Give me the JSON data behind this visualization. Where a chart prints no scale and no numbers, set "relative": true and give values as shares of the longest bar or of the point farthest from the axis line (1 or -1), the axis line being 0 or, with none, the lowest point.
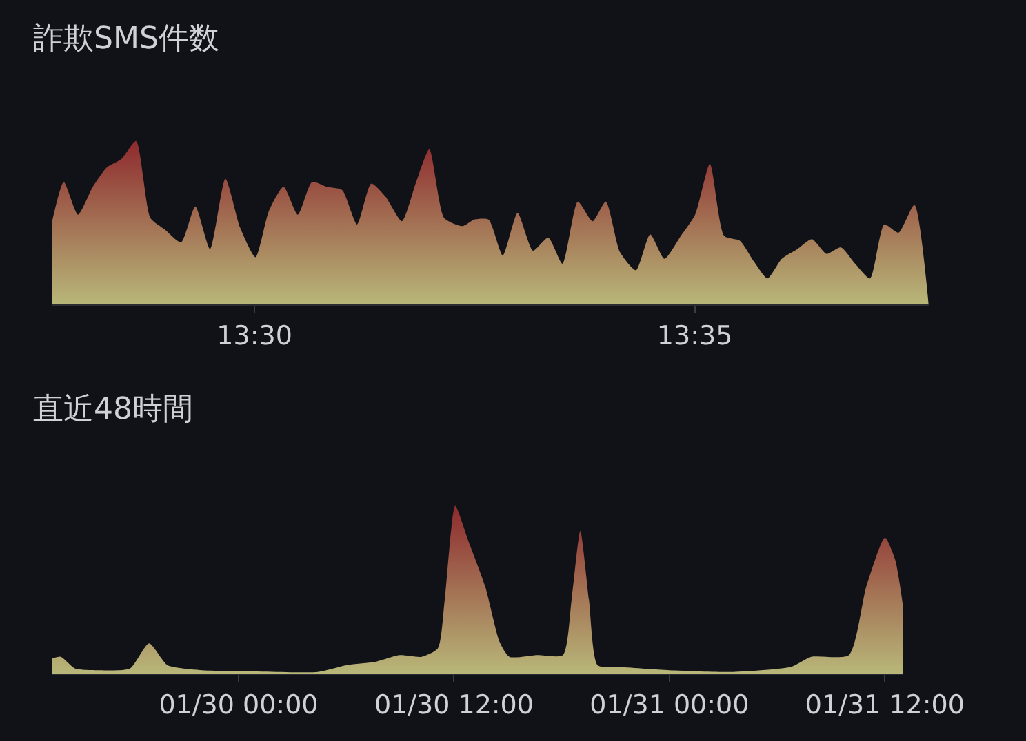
{
  "chart_data": [
    {
      "type": "area",
      "title": "詐欺SMS件数",
      "relative": true,
      "tick_labels": "x",
      "xlim": [
        13.4617,
        13.6276
      ],
      "xticks": [
        {
          "value": 13.5,
          "label": "13:30"
        },
        {
          "value": 13.58333,
          "label": "13:35"
        }
      ],
      "series": [
        {
          "color": "#b8b779",
          "x": [
            13.4617,
            13.4639,
            13.4666,
            13.4694,
            13.4721,
            13.4748,
            13.4776,
            13.4803,
            13.483,
            13.4861,
            13.4888,
            13.4916,
            13.4945,
            13.4973,
            13.5002,
            13.5027,
            13.5055,
            13.5082,
            13.5109,
            13.5137,
            13.5166,
            13.5194,
            13.5221,
            13.5248,
            13.5279,
            13.5306,
            13.5331,
            13.5359,
            13.5394,
            13.5416,
            13.5443,
            13.547,
            13.5498,
            13.5527,
            13.5556,
            13.5583,
            13.5612,
            13.564,
            13.5665,
            13.5692,
            13.5722,
            13.5749,
            13.5776,
            13.5807,
            13.5834,
            13.5862,
            13.5889,
            13.5919,
            13.5946,
            13.5971,
            13.5998,
            13.6028,
            13.6055,
            13.6083,
            13.611,
            13.6137,
            13.6165,
            13.6192,
            13.6219,
            13.6249,
            13.6276
          ],
          "values": [
            0.51,
            0.75,
            0.55,
            0.72,
            0.84,
            0.89,
            1.0,
            0.53,
            0.46,
            0.38,
            0.6,
            0.34,
            0.77,
            0.47,
            0.29,
            0.57,
            0.72,
            0.55,
            0.75,
            0.72,
            0.7,
            0.49,
            0.74,
            0.66,
            0.51,
            0.75,
            0.95,
            0.53,
            0.48,
            0.52,
            0.52,
            0.3,
            0.56,
            0.33,
            0.41,
            0.25,
            0.63,
            0.51,
            0.63,
            0.32,
            0.21,
            0.43,
            0.28,
            0.42,
            0.55,
            0.86,
            0.42,
            0.39,
            0.26,
            0.16,
            0.28,
            0.34,
            0.4,
            0.31,
            0.35,
            0.25,
            0.16,
            0.49,
            0.44,
            0.61,
            0.0
          ]
        }
      ]
    },
    {
      "type": "area",
      "title": "直近48時間",
      "relative": true,
      "tick_labels": "x",
      "xlim": [
        "--01-29T13:37",
        "--01-31T12:59"
      ],
      "xticks": [
        {
          "value": "--01-30T00:00",
          "label": "01/30 00:00"
        },
        {
          "value": "--01-30T12:00",
          "label": "01/30 12:00"
        },
        {
          "value": "--01-31T00:00",
          "label": "01/31 00:00"
        },
        {
          "value": "--01-31T12:00",
          "label": "01/31 12:00"
        }
      ],
      "series": [
        {
          "color": "#b8b779",
          "x": [
            "--01-29T13:37",
            "--01-29T14:06",
            "--01-29T14:54",
            "--01-29T16:12",
            "--01-29T17:57",
            "--01-29T19:01",
            "--01-29T20:03",
            "--01-29T21:58",
            "--01-30T00:00",
            "--01-30T04:24",
            "--01-30T06:00",
            "--01-30T07:37",
            "--01-30T08:58",
            "--01-30T10:12",
            "--01-30T11:06",
            "--01-30T11:29",
            "--01-30T12:04",
            "--01-30T12:46",
            "--01-30T13:44",
            "--01-30T14:32",
            "--01-30T15:05",
            "--01-30T16:37",
            "--01-30T18:04",
            "--01-30T18:33",
            "--01-30T19:02",
            "--01-30T19:31",
            "--01-30T20:00",
            "--01-30T21:07",
            "--01-31T00:00",
            "--01-31T03:33",
            "--01-31T06:46",
            "--01-31T07:54",
            "--01-31T10:00",
            "--01-31T10:58",
            "--01-31T12:00",
            "--01-31T12:34",
            "--01-31T12:59"
          ],
          "values": [
            0.09,
            0.1,
            0.03,
            0.02,
            0.03,
            0.18,
            0.05,
            0.02,
            0.016,
            0.01,
            0.05,
            0.07,
            0.11,
            0.1,
            0.15,
            0.44,
            1.0,
            0.8,
            0.52,
            0.19,
            0.1,
            0.11,
            0.11,
            0.44,
            0.85,
            0.44,
            0.05,
            0.04,
            0.02,
            0.01,
            0.04,
            0.1,
            0.11,
            0.52,
            0.81,
            0.68,
            0.42
          ]
        }
      ]
    }
  ]
}
